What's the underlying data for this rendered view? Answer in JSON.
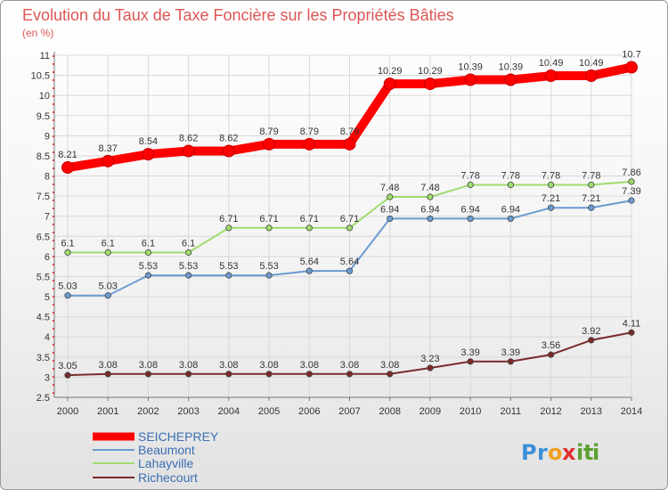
{
  "chart_data": {
    "type": "line",
    "title": "Evolution du Taux de Taxe Foncière sur les Propriétés Bâties",
    "subtitle": "(en %)",
    "x": [
      "2000",
      "2001",
      "2002",
      "2003",
      "2004",
      "2005",
      "2006",
      "2007",
      "2008",
      "2009",
      "2010",
      "2011",
      "2012",
      "2013",
      "2014"
    ],
    "yticks": [
      "2.5",
      "3",
      "3.5",
      "4",
      "4.5",
      "5",
      "5.5",
      "6",
      "6.5",
      "7",
      "7.5",
      "8",
      "8.5",
      "9",
      "9.5",
      "10",
      "10.5",
      "11"
    ],
    "ylim": [
      2.5,
      11
    ],
    "grid": true,
    "legend_position": "bottom-left",
    "series": [
      {
        "name": "SEICHEPREY",
        "color": "#ff0000",
        "values": [
          8.21,
          8.37,
          8.54,
          8.62,
          8.62,
          8.79,
          8.79,
          8.79,
          10.29,
          10.29,
          10.39,
          10.39,
          10.49,
          10.49,
          10.7
        ],
        "labels": [
          "8.21",
          "8.37",
          "8.54",
          "8.62",
          "8.62",
          "8.79",
          "8.79",
          "8.79",
          "10.29",
          "10.29",
          "10.39",
          "10.39",
          "10.49",
          "10.49",
          "10.7"
        ]
      },
      {
        "name": "Beaumont",
        "color": "#6b9bd1",
        "values": [
          5.03,
          5.03,
          5.53,
          5.53,
          5.53,
          5.53,
          5.64,
          5.64,
          6.94,
          6.94,
          6.94,
          6.94,
          7.21,
          7.21,
          7.39
        ],
        "labels": [
          "5.03",
          "5.03",
          "5.53",
          "5.53",
          "5.53",
          "5.53",
          "5.64",
          "5.64",
          "6.94",
          "6.94",
          "6.94",
          "6.94",
          "7.21",
          "7.21",
          "7.39"
        ]
      },
      {
        "name": "Lahayville",
        "color": "#9fdc6e",
        "values": [
          6.1,
          6.1,
          6.1,
          6.1,
          6.71,
          6.71,
          6.71,
          6.71,
          7.48,
          7.48,
          7.78,
          7.78,
          7.78,
          7.78,
          7.86
        ],
        "labels": [
          "6.1",
          "6.1",
          "6.1",
          "6.1",
          "6.71",
          "6.71",
          "6.71",
          "6.71",
          "7.48",
          "7.48",
          "7.78",
          "7.78",
          "7.78",
          "7.78",
          "7.86"
        ]
      },
      {
        "name": "Richecourt",
        "color": "#7a2a2a",
        "values": [
          3.05,
          3.08,
          3.08,
          3.08,
          3.08,
          3.08,
          3.08,
          3.08,
          3.08,
          3.23,
          3.39,
          3.39,
          3.56,
          3.92,
          4.11
        ],
        "labels": [
          "3.05",
          "3.08",
          "3.08",
          "3.08",
          "3.08",
          "3.08",
          "3.08",
          "3.08",
          "3.08",
          "3.23",
          "3.39",
          "3.39",
          "3.56",
          "3.92",
          "4.11"
        ]
      }
    ]
  },
  "logo": {
    "text": "Proxiti",
    "letters": [
      "P",
      "r",
      "o",
      "x",
      "i",
      "t",
      "i"
    ],
    "colors": [
      "#3a8fd8",
      "#3a8fd8",
      "#f0a020",
      "#e03030",
      "#5aa030",
      "#5aa030",
      "#5aa030"
    ]
  }
}
